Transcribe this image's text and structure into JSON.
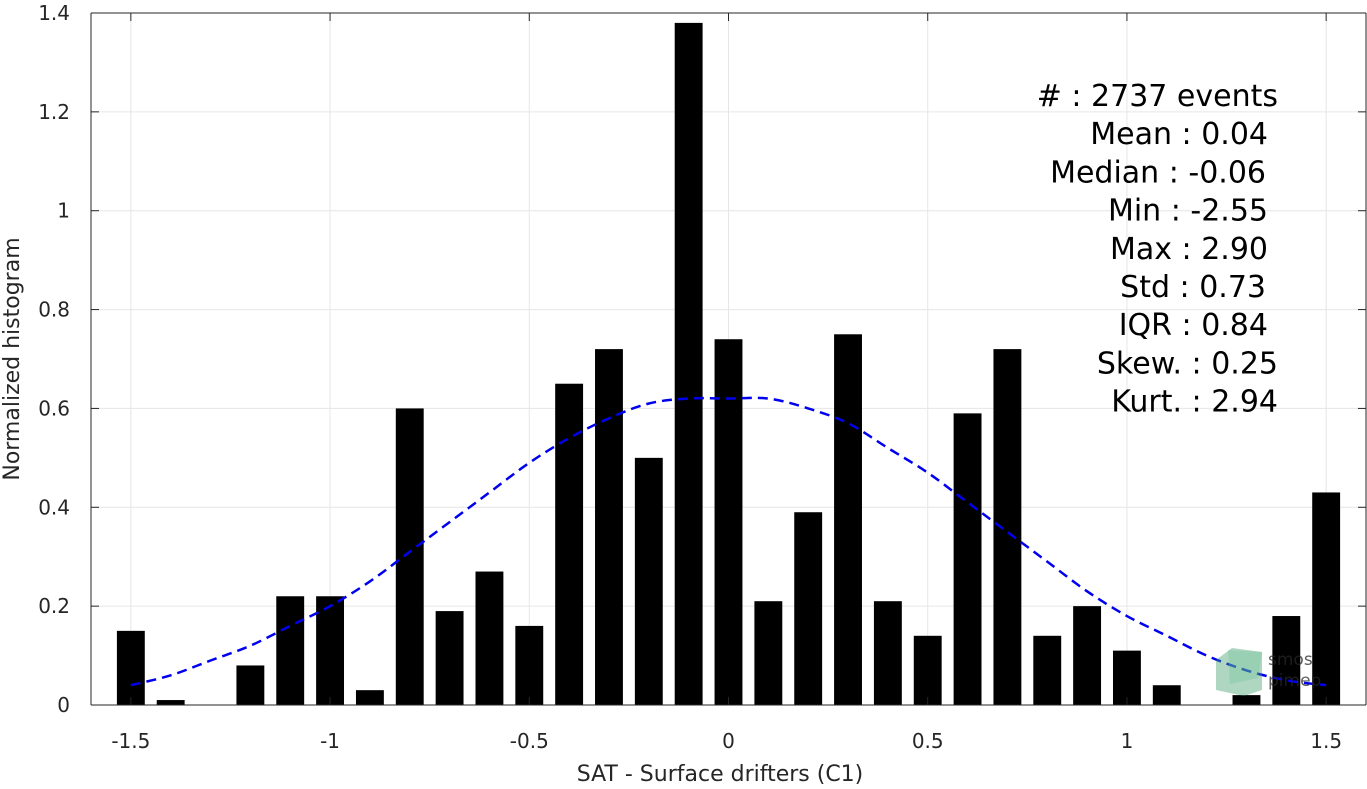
{
  "chart_data": {
    "type": "bar",
    "xlabel": "SAT - Surface drifters (C1)",
    "ylabel": "Normalized histogram",
    "xlim": [
      -1.6,
      1.6
    ],
    "ylim": [
      0,
      1.4
    ],
    "xticks": [
      -1.5,
      -1,
      -0.5,
      0,
      0.5,
      1,
      1.5
    ],
    "xtick_labels": [
      "-1.5",
      "-1",
      "-0.5",
      "0",
      "0.5",
      "1",
      "1.5"
    ],
    "yticks": [
      0,
      0.2,
      0.4,
      0.6,
      0.8,
      1,
      1.2,
      1.4
    ],
    "ytick_labels": [
      "0",
      "0.2",
      "0.4",
      "0.6",
      "0.8",
      "1",
      "1.2",
      "1.4"
    ],
    "grid": true,
    "bar_color": "#000000",
    "bins": {
      "centers": [
        -1.5,
        -1.4,
        -1.3,
        -1.2,
        -1.1,
        -1.0,
        -0.9,
        -0.8,
        -0.7,
        -0.6,
        -0.5,
        -0.4,
        -0.3,
        -0.2,
        -0.1,
        0.0,
        0.1,
        0.2,
        0.3,
        0.4,
        0.5,
        0.6,
        0.7,
        0.8,
        0.9,
        1.0,
        1.1,
        1.2,
        1.3,
        1.4,
        1.5
      ],
      "values": [
        0.15,
        0.01,
        0.0,
        0.08,
        0.22,
        0.22,
        0.03,
        0.6,
        0.19,
        0.27,
        0.16,
        0.65,
        0.72,
        0.5,
        1.38,
        0.74,
        0.21,
        0.39,
        0.75,
        0.21,
        0.14,
        0.59,
        0.72,
        0.14,
        0.2,
        0.11,
        0.04,
        0.0,
        0.02,
        0.18,
        0.43
      ]
    },
    "fit_curve": {
      "type": "gaussian",
      "style": "dashed",
      "color": "#0000ee",
      "x": [
        -1.5,
        -1.4,
        -1.3,
        -1.2,
        -1.1,
        -1.0,
        -0.9,
        -0.8,
        -0.7,
        -0.6,
        -0.5,
        -0.4,
        -0.3,
        -0.2,
        -0.1,
        0.0,
        0.1,
        0.2,
        0.3,
        0.4,
        0.5,
        0.6,
        0.7,
        0.8,
        0.9,
        1.0,
        1.1,
        1.2,
        1.3,
        1.4,
        1.5
      ],
      "y": [
        0.04,
        0.06,
        0.09,
        0.12,
        0.16,
        0.2,
        0.25,
        0.31,
        0.37,
        0.43,
        0.49,
        0.54,
        0.58,
        0.61,
        0.62,
        0.62,
        0.62,
        0.6,
        0.57,
        0.52,
        0.47,
        0.41,
        0.35,
        0.29,
        0.23,
        0.18,
        0.14,
        0.1,
        0.07,
        0.05,
        0.04
      ]
    },
    "stats": [
      "#  : 2737 events",
      "Mean : 0.04",
      "Median : -0.06",
      "Min : -2.55",
      "Max : 2.90",
      "Std : 0.73",
      "IQR : 0.84",
      "Skew. : 0.25",
      "Kurt. : 2.94"
    ],
    "watermark": {
      "text": "smos pimep",
      "color": "#2e8b57"
    }
  }
}
